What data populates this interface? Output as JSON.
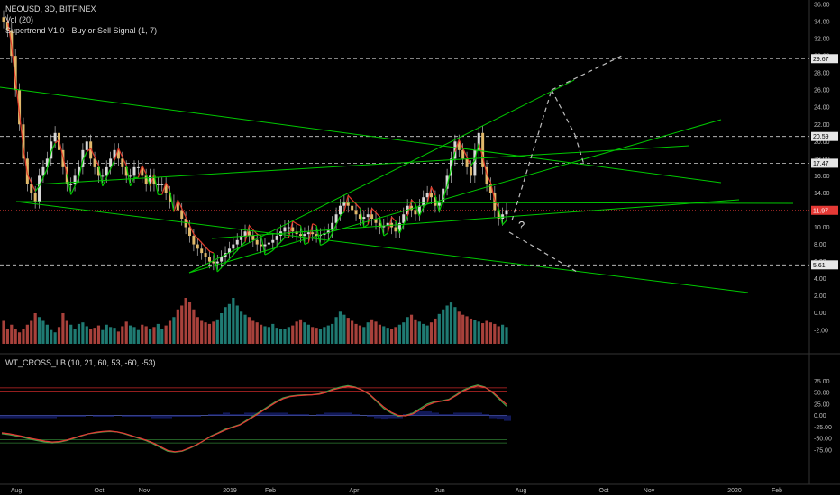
{
  "header": {
    "symbol_line": "NEOUSD, 3D, BITFINEX",
    "vol_line": "Vol (20)",
    "supertrend_line": "Supertrend V1.0 - Buy or Sell Signal (1, 7)"
  },
  "oscillator": {
    "title": "WT_CROSS_LB (10, 21, 60, 53, -60, -53)"
  },
  "annotations": {
    "question": "?"
  },
  "colors": {
    "background": "#000000",
    "up": "#26a69a",
    "down": "#ef5350",
    "trendline": "#00c800",
    "signal": "#e23b2a",
    "price_tag": "#e53935"
  },
  "chart_data": [
    {
      "type": "candlestick",
      "title": "NEOUSD, 3D, BITFINEX",
      "ylim": [
        -4,
        36
      ],
      "y_ticks": [
        "36.00",
        "34.00",
        "32.00",
        "30.00",
        "28.00",
        "26.00",
        "24.00",
        "22.00",
        "20.00",
        "18.00",
        "16.00",
        "14.00",
        "12.00",
        "10.00",
        "8.00",
        "6.00",
        "4.00",
        "2.00",
        "0.00",
        "-2.00"
      ],
      "x_labels": [
        "Aug",
        "Oct",
        "Nov",
        "2019",
        "Feb",
        "Apr",
        "Jun",
        "Aug",
        "Oct",
        "Nov",
        "2020",
        "Feb"
      ],
      "price_levels": [
        {
          "label": "29.67",
          "value": 29.67,
          "style": "dashed"
        },
        {
          "label": "20.59",
          "value": 20.59,
          "style": "dashed"
        },
        {
          "label": "17.47",
          "value": 17.47,
          "style": "dashed"
        },
        {
          "label": "11.97",
          "value": 11.97,
          "style": "current"
        },
        {
          "label": "5.61",
          "value": 5.61,
          "style": "dashed"
        }
      ],
      "close": [
        34,
        33,
        30,
        26,
        22,
        18,
        15,
        14,
        13,
        16,
        17,
        18,
        20,
        21,
        19,
        17,
        15,
        15,
        16,
        17,
        19,
        20,
        18,
        17,
        16,
        16,
        17,
        18,
        19,
        18,
        17,
        16,
        16,
        17,
        17,
        16,
        15,
        16,
        15,
        15,
        15,
        14,
        13,
        13,
        12,
        11,
        10,
        9,
        8,
        7.5,
        7,
        6.5,
        6,
        5.8,
        6,
        6.5,
        7,
        7.5,
        8,
        8.5,
        9,
        9.5,
        9,
        8.5,
        8,
        7.8,
        8,
        8.2,
        8.5,
        9,
        9.5,
        10,
        10,
        9.5,
        9.2,
        9,
        9.2,
        9.4,
        9.2,
        9,
        9.1,
        9.3,
        9.6,
        10.5,
        11.5,
        12.5,
        13,
        12.5,
        12,
        11.5,
        11,
        11.2,
        11.5,
        11,
        10.5,
        10,
        10.2,
        10.5,
        10,
        9.5,
        10.5,
        11.5,
        12.5,
        12,
        11.5,
        12.5,
        13.5,
        14,
        13.5,
        12.5,
        13,
        14.5,
        16,
        18,
        20,
        19,
        18,
        17,
        16,
        19,
        21,
        17,
        15,
        14,
        12,
        11,
        11.5,
        12
      ],
      "volume": [
        3,
        2,
        2.5,
        2,
        1.5,
        2,
        2.5,
        3,
        4,
        3.5,
        3,
        2.5,
        1.8,
        1.5,
        2.2,
        4,
        3,
        2.5,
        2,
        2.6,
        2.8,
        2.3,
        1.9,
        2.1,
        2.4,
        1.8,
        2.5,
        2.2,
        2.1,
        1.6,
        2.3,
        2.9,
        2.4,
        2.2,
        1.8,
        2.5,
        2.3,
        2,
        2.2,
        2.6,
        1.9,
        2.4,
        3,
        3.5,
        4.5,
        5,
        6,
        5.5,
        4.5,
        3.5,
        3,
        2.8,
        2.6,
        2.9,
        3.2,
        4,
        4.8,
        5.2,
        6,
        5,
        4.2,
        3.8,
        3.5,
        3,
        2.8,
        2.5,
        2.3,
        2.2,
        2.6,
        2.1,
        1.9,
        2,
        2.2,
        2.4,
        2.9,
        3.2,
        2.8,
        2.5,
        2.2,
        2.1,
        2,
        2.2,
        2.4,
        2.6,
        3.5,
        4.2,
        3.8,
        3.4,
        3,
        2.6,
        2.4,
        2.2,
        2.8,
        3.2,
        2.9,
        2.5,
        2.3,
        2.1,
        2,
        2.2,
        2.5,
        2.8,
        3.5,
        3.8,
        3.2,
        2.9,
        2.6,
        2.4,
        2.8,
        3.3,
        3.9,
        4.5,
        5,
        5.4,
        4.8,
        4.2,
        3.8,
        3.6,
        3.3,
        3.1,
        2.9,
        2.7,
        3,
        2.8,
        2.6,
        2.3,
        2.5,
        2.2
      ],
      "trendlines_note": "descending wedge and rising channel lines"
    },
    {
      "type": "line",
      "title": "WT_CROSS_LB (10, 21, 60, 53, -60, -53)",
      "ylim": [
        -90,
        90
      ],
      "y_ticks": [
        "75.00",
        "50.00",
        "25.00",
        "0.00",
        "-25.00",
        "-50.00",
        "-75.00"
      ],
      "levels": [
        60,
        53,
        -60,
        -53
      ],
      "series": [
        {
          "values": [
            -40,
            -42,
            -45,
            -48,
            -52,
            -55,
            -58,
            -60,
            -58,
            -55,
            -50,
            -45,
            -40,
            -38,
            -36,
            -35,
            -36,
            -40,
            -45,
            -50,
            -55,
            -62,
            -70,
            -78,
            -80,
            -78,
            -72,
            -65,
            -55,
            -45,
            -38,
            -30,
            -25,
            -20,
            -10,
            0,
            10,
            20,
            30,
            38,
            42,
            44,
            45,
            45,
            47,
            52,
            58,
            62,
            65,
            62,
            55,
            45,
            30,
            15,
            5,
            -2,
            0,
            5,
            15,
            25,
            30,
            32,
            35,
            45,
            55,
            62,
            66,
            62,
            50,
            35,
            20
          ]
        },
        {
          "values": [
            -38,
            -40,
            -43,
            -46,
            -50,
            -53,
            -56,
            -58,
            -57,
            -54,
            -49,
            -44,
            -40,
            -37,
            -35,
            -34,
            -36,
            -39,
            -44,
            -49,
            -54,
            -60,
            -68,
            -76,
            -79,
            -77,
            -71,
            -64,
            -55,
            -46,
            -39,
            -32,
            -26,
            -21,
            -12,
            -2,
            8,
            18,
            28,
            36,
            41,
            43,
            44,
            45,
            46,
            50,
            56,
            60,
            63,
            61,
            55,
            46,
            32,
            18,
            7,
            0,
            -1,
            3,
            12,
            22,
            28,
            31,
            34,
            43,
            53,
            60,
            64,
            61,
            52,
            38,
            24
          ]
        }
      ]
    }
  ]
}
